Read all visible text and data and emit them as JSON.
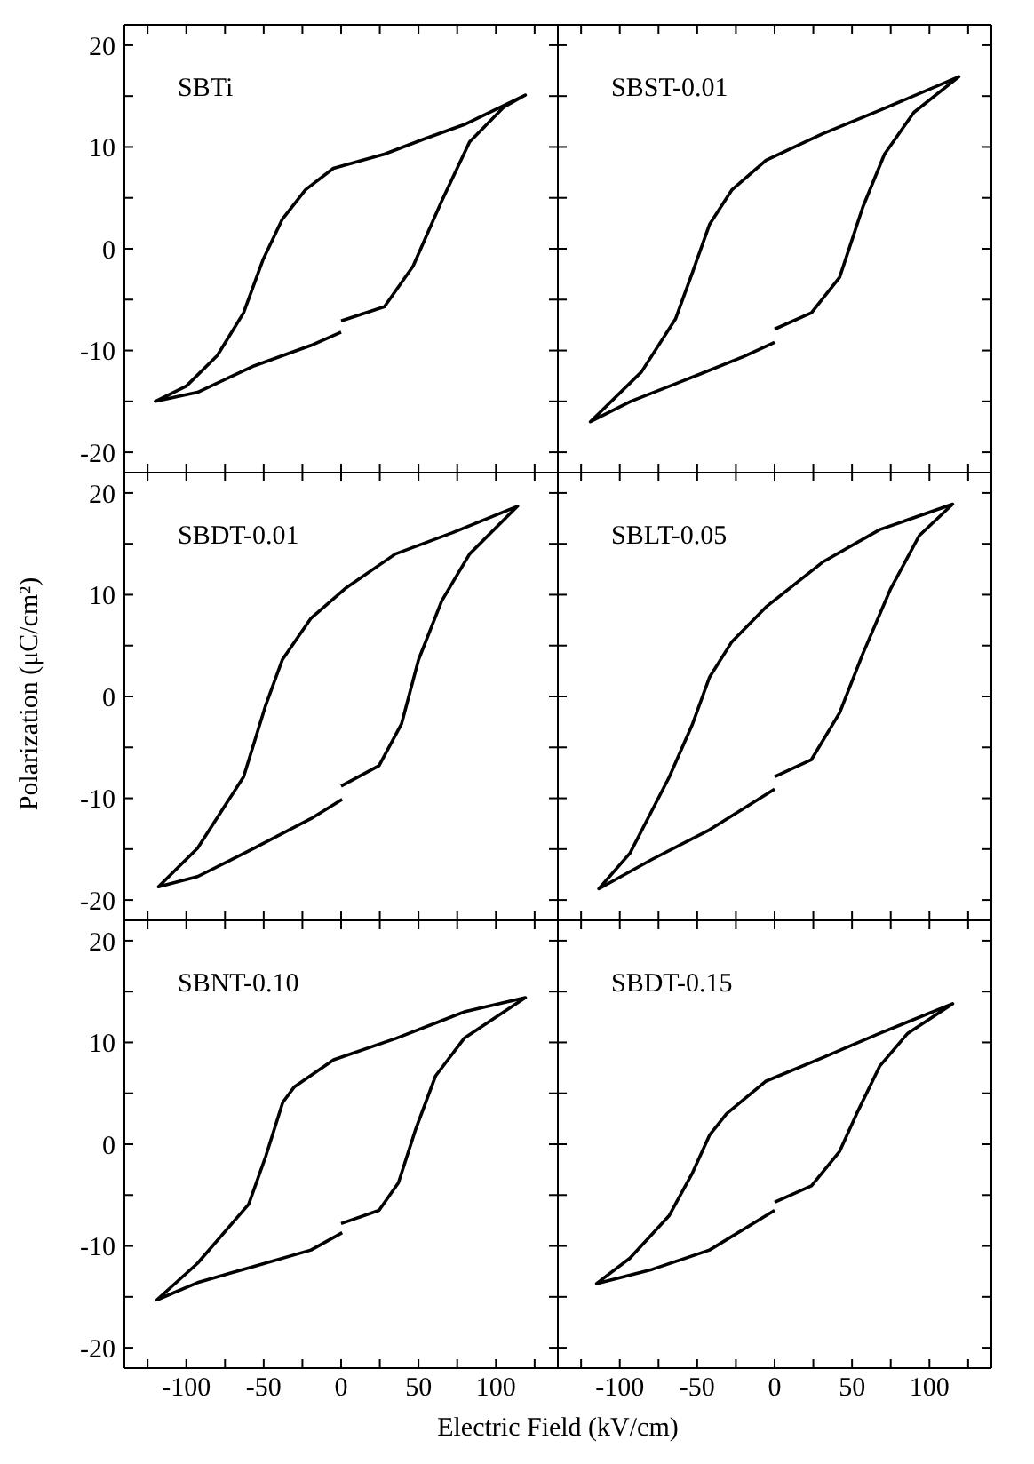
{
  "chart_data": [
    {
      "type": "line",
      "title": "SBTi",
      "tick_labels": "y",
      "line_style": "solid",
      "xlim": [
        -140,
        140
      ],
      "ylim": [
        -22,
        22
      ],
      "xticks": [
        {
          "value": -125,
          "label": null
        },
        -100,
        {
          "value": -75,
          "label": null
        },
        -50,
        {
          "value": -25,
          "label": null
        },
        0,
        {
          "value": 25,
          "label": null
        },
        50,
        {
          "value": 75,
          "label": null
        },
        100,
        {
          "value": 125,
          "label": null
        }
      ],
      "yticks": [
        -20,
        {
          "value": -15,
          "label": null
        },
        -10,
        {
          "value": -5,
          "label": null
        },
        0,
        {
          "value": 5,
          "label": null
        },
        10,
        {
          "value": 15,
          "label": null
        },
        20
      ],
      "series": [
        {
          "color": "#000000",
          "x": [
            0,
            28,
            46.5,
            65,
            83,
            105,
            119,
            79.5,
            54,
            28,
            -5,
            -23,
            -38,
            -50.5,
            -63,
            -80,
            -100,
            -120,
            -92.7,
            -56,
            -19.4,
            0
          ],
          "values": [
            -7.1,
            -5.7,
            -1.7,
            4.7,
            10.5,
            13.9,
            15.1,
            12.2,
            10.8,
            9.3,
            7.9,
            5.8,
            2.9,
            -1.1,
            -6.3,
            -10.5,
            -13.5,
            -15,
            -14.1,
            -11.5,
            -9.5,
            -8.2
          ]
        }
      ]
    },
    {
      "type": "line",
      "title": "SBST-0.01",
      "tick_labels": false,
      "line_style": "solid",
      "xlim": [
        -140,
        140
      ],
      "ylim": [
        -22,
        22
      ],
      "xticks": [
        {
          "value": -125,
          "label": null
        },
        -100,
        {
          "value": -75,
          "label": null
        },
        -50,
        {
          "value": -25,
          "label": null
        },
        0,
        {
          "value": 25,
          "label": null
        },
        50,
        {
          "value": 75,
          "label": null
        },
        100,
        {
          "value": 125,
          "label": null
        }
      ],
      "yticks": [
        -20,
        {
          "value": -15,
          "label": null
        },
        -10,
        {
          "value": -5,
          "label": null
        },
        0,
        {
          "value": 5,
          "label": null
        },
        10,
        {
          "value": 15,
          "label": null
        },
        20
      ],
      "series": [
        {
          "color": "#000000",
          "x": [
            0,
            23.8,
            42,
            57,
            71,
            90,
            119,
            68,
            31,
            -5.5,
            -27.5,
            -42,
            -53,
            -64,
            -86,
            -119,
            -93,
            -49.5,
            -20,
            0
          ],
          "values": [
            -7.9,
            -6.3,
            -2.8,
            4.1,
            9.3,
            13.4,
            16.9,
            13.6,
            11.3,
            8.7,
            5.8,
            2.4,
            -2.3,
            -6.9,
            -12.1,
            -17,
            -15,
            -12.4,
            -10.6,
            -9.2
          ]
        }
      ]
    },
    {
      "type": "line",
      "title": "SBDT-0.01",
      "tick_labels": "y",
      "line_style": "solid",
      "xlim": [
        -140,
        140
      ],
      "ylim": [
        -22,
        22
      ],
      "xticks": [
        {
          "value": -125,
          "label": null
        },
        -100,
        {
          "value": -75,
          "label": null
        },
        -50,
        {
          "value": -25,
          "label": null
        },
        0,
        {
          "value": 25,
          "label": null
        },
        50,
        {
          "value": 75,
          "label": null
        },
        100,
        {
          "value": 125,
          "label": null
        }
      ],
      "yticks": [
        -20,
        {
          "value": -15,
          "label": null
        },
        -10,
        {
          "value": -5,
          "label": null
        },
        0,
        {
          "value": 5,
          "label": null
        },
        10,
        {
          "value": 15,
          "label": null
        },
        20
      ],
      "ylabel": "Polarization (μC/cm²)",
      "series": [
        {
          "color": "#000000",
          "x": [
            0,
            24.5,
            39,
            50,
            65,
            83,
            114,
            72,
            35,
            2.6,
            -19.4,
            -38,
            -49,
            -63,
            -92.7,
            -118,
            -92.7,
            -56,
            -19.4,
            0.7
          ],
          "values": [
            -8.8,
            -6.8,
            -2.7,
            3.6,
            9.4,
            14,
            18.7,
            16.1,
            14,
            10.6,
            7.7,
            3.6,
            -1,
            -7.9,
            -14.9,
            -18.7,
            -17.7,
            -14.9,
            -12,
            -10.1
          ]
        }
      ]
    },
    {
      "type": "line",
      "title": "SBLT-0.05",
      "tick_labels": false,
      "line_style": "solid",
      "xlim": [
        -140,
        140
      ],
      "ylim": [
        -22,
        22
      ],
      "xticks": [
        {
          "value": -125,
          "label": null
        },
        -100,
        {
          "value": -75,
          "label": null
        },
        -50,
        {
          "value": -25,
          "label": null
        },
        0,
        {
          "value": 25,
          "label": null
        },
        50,
        {
          "value": 75,
          "label": null
        },
        100,
        {
          "value": 125,
          "label": null
        }
      ],
      "yticks": [
        -20,
        {
          "value": -15,
          "label": null
        },
        -10,
        {
          "value": -5,
          "label": null
        },
        0,
        {
          "value": 5,
          "label": null
        },
        10,
        {
          "value": 15,
          "label": null
        },
        20
      ],
      "series": [
        {
          "color": "#000000",
          "x": [
            0,
            23.8,
            42,
            57,
            75,
            93.4,
            115,
            68,
            31,
            -5.5,
            -27.5,
            -42,
            -53,
            -68,
            -93.4,
            -113.5,
            -79,
            -42,
            0
          ],
          "values": [
            -7.9,
            -6.2,
            -1.6,
            4.2,
            10.6,
            15.8,
            18.9,
            16.4,
            13.2,
            8.8,
            5.4,
            1.9,
            -2.7,
            -7.9,
            -15.4,
            -18.9,
            -16,
            -13.1,
            -9.1
          ]
        }
      ]
    },
    {
      "type": "line",
      "title": "SBNT-0.10",
      "line_style": "solid",
      "xlim": [
        -140,
        140
      ],
      "ylim": [
        -22,
        22
      ],
      "xticks": [
        {
          "value": -125,
          "label": null
        },
        -100,
        {
          "value": -75,
          "label": null
        },
        -50,
        {
          "value": -25,
          "label": null
        },
        0,
        {
          "value": 25,
          "label": null
        },
        50,
        {
          "value": 75,
          "label": null
        },
        100,
        {
          "value": 125,
          "label": null
        }
      ],
      "yticks": [
        -20,
        {
          "value": -15,
          "label": null
        },
        -10,
        {
          "value": -5,
          "label": null
        },
        0,
        {
          "value": 5,
          "label": null
        },
        10,
        {
          "value": 15,
          "label": null
        },
        20
      ],
      "xlabel": "Electric Field (kV/cm)",
      "series": [
        {
          "color": "#000000",
          "x": [
            0,
            24.5,
            37,
            48,
            61,
            79.5,
            119,
            79.5,
            35.5,
            -4.8,
            -30.4,
            -37.7,
            -48.7,
            -59.7,
            -92.7,
            -119,
            -92.7,
            -56,
            -19.4,
            0.7
          ],
          "values": [
            -7.8,
            -6.5,
            -3.8,
            1.4,
            6.7,
            10.4,
            14.4,
            13,
            10.4,
            8.3,
            5.6,
            4.1,
            -1.2,
            -5.9,
            -11.7,
            -15.3,
            -13.6,
            -12,
            -10.4,
            -8.7
          ]
        }
      ]
    },
    {
      "type": "line",
      "title": "SBDT-0.15",
      "tick_labels": "x",
      "line_style": "solid",
      "xlim": [
        -140,
        140
      ],
      "ylim": [
        -22,
        22
      ],
      "xticks": [
        {
          "value": -125,
          "label": null
        },
        -100,
        {
          "value": -75,
          "label": null
        },
        -50,
        {
          "value": -25,
          "label": null
        },
        0,
        {
          "value": 25,
          "label": null
        },
        50,
        {
          "value": 75,
          "label": null
        },
        100,
        {
          "value": 125,
          "label": null
        }
      ],
      "yticks": [
        -20,
        {
          "value": -15,
          "label": null
        },
        -10,
        {
          "value": -5,
          "label": null
        },
        0,
        {
          "value": 5,
          "label": null
        },
        10,
        {
          "value": 15,
          "label": null
        },
        20
      ],
      "series": [
        {
          "color": "#000000",
          "x": [
            0,
            23.8,
            42,
            53,
            68,
            86,
            115,
            68,
            31,
            -5.5,
            -31,
            -42,
            -53,
            -68,
            -93.4,
            -115,
            -79,
            -42,
            0
          ],
          "values": [
            -5.7,
            -4.1,
            -0.7,
            3,
            7.7,
            10.9,
            13.8,
            10.9,
            8.5,
            6.2,
            3,
            0.9,
            -2.8,
            -7,
            -11.2,
            -13.7,
            -12.3,
            -10.4,
            -6.5
          ]
        }
      ]
    }
  ]
}
